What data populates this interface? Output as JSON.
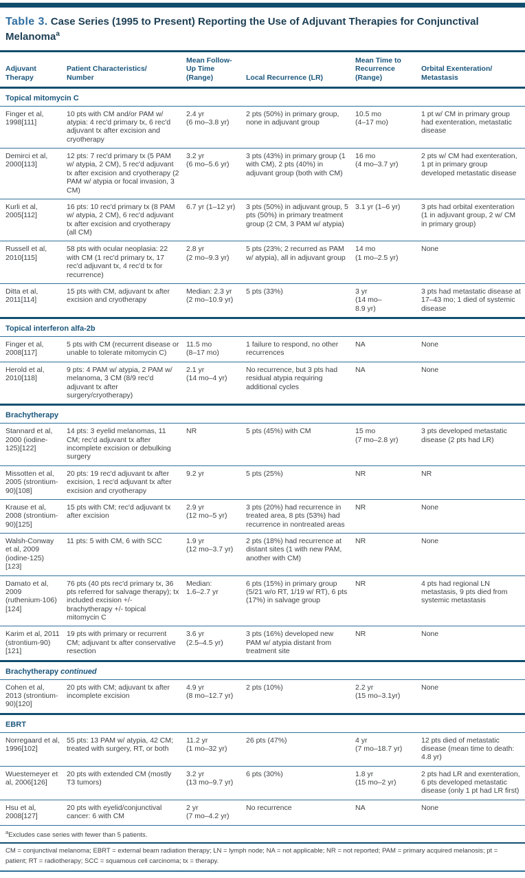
{
  "title": {
    "label": "Table 3.",
    "text": " Case Series (1995 to Present) Reporting the Use of Adjuvant Therapies for Conjunctival Melanoma",
    "superscript": "a"
  },
  "columns": [
    "Adjuvant\nTherapy",
    "Patient Characteristics/\nNumber",
    "Mean Follow-\nUp Time\n(Range)",
    "Local Recurrence (LR)",
    "Mean Time to\nRecurrence\n(Range)",
    "Orbital Exenteration/\nMetastasis"
  ],
  "sections": [
    {
      "title": "Topical mitomycin C",
      "suffix": "",
      "rows": [
        [
          "Finger et al, 1998[111]",
          "10 pts with CM and/or PAM w/ atypia: 4 rec'd primary tx, 6 rec'd adjuvant tx after excision and cryotherapy",
          "2.4 yr\n(6 mo–3.8 yr)",
          "2 pts (50%) in primary group, none in adjuvant group",
          "10.5 mo\n(4–17 mo)",
          "1 pt w/ CM in primary group had exenteration, metastatic disease"
        ],
        [
          "Demirci et al, 2000[113]",
          "12 pts: 7 rec'd primary tx (5 PAM w/ atypia, 2 CM), 5 rec'd adjuvant tx after excision and cryotherapy (2 PAM w/ atypia or focal invasion, 3 CM)",
          "3.2 yr\n(6 mo–5.6 yr)",
          "3 pts (43%) in primary group (1 with CM), 2 pts (40%) in adjuvant group (both with CM)",
          "16 mo\n(4 mo–3.7 yr)",
          "2 pts w/ CM had exenteration, 1 pt in primary group developed metastatic disease"
        ],
        [
          "Kurli et al, 2005[112]",
          "16 pts: 10 rec'd primary tx (8 PAM w/ atypia, 2 CM), 6 rec'd adjuvant tx after excision and cryotherapy (all CM)",
          "6.7 yr (1–12 yr)",
          "3 pts (50%) in adjuvant group, 5 pts (50%) in primary treatment group (2 CM, 3 PAM w/ atypia)",
          "3.1 yr (1–6 yr)",
          "3 pts had orbital exenteration (1 in adjuvant group, 2 w/ CM in primary group)"
        ],
        [
          "Russell et al, 2010[115]",
          "58 pts with ocular neoplasia: 22 with CM (1 rec'd primary tx, 17 rec'd adjuvant tx, 4 rec'd tx for recurrence)",
          "2.8 yr\n(2 mo–9.3 yr)",
          "5 pts (23%; 2 recurred as PAM w/ atypia), all in adjuvant group",
          "14 mo\n(1 mo–2.5 yr)",
          "None"
        ],
        [
          "Ditta et al, 2011[114]",
          "15 pts with CM, adjuvant tx after excision and cryotherapy",
          "Median: 2.3 yr\n(2 mo–10.9 yr)",
          "5 pts (33%)",
          "3 yr\n(14 mo–\n8.9 yr)",
          "3 pts had metastatic disease at 17–43 mo; 1 died of systemic disease"
        ]
      ]
    },
    {
      "title": "Topical interferon alfa-2b",
      "suffix": "",
      "rows": [
        [
          "Finger et al, 2008[117]",
          "5 pts with CM (recurrent disease or unable to tolerate mitomycin C)",
          "11.5 mo\n(8–17 mo)",
          "1 failure to respond, no other recurrences",
          "NA",
          "None"
        ],
        [
          "Herold et al, 2010[118]",
          "9 pts: 4 PAM w/ atypia, 2 PAM w/ melanoma, 3 CM (8/9 rec'd adjuvant tx after surgery/cryotherapy)",
          "2.1 yr\n(14 mo–4 yr)",
          "No recurrence, but 3 pts had residual atypia requiring additional cycles",
          "NA",
          "None"
        ]
      ]
    },
    {
      "title": "Brachytherapy",
      "suffix": "",
      "rows": [
        [
          "Stannard et al, 2000 (iodine-125)[122]",
          "14 pts: 3 eyelid melanomas, 11 CM; rec'd adjuvant tx after incomplete excision or debulking surgery",
          "NR",
          "5 pts (45%) with CM",
          "15 mo\n(7 mo–2.8 yr)",
          "3 pts developed metastatic disease (2 pts had LR)"
        ],
        [
          "Missotten et al, 2005 (strontium-90)[108]",
          "20 pts: 19 rec'd adjuvant tx after excision, 1 rec'd adjuvant tx after excision and cryotherapy",
          "9.2 yr",
          "5 pts (25%)",
          "NR",
          "NR"
        ],
        [
          "Krause et al, 2008 (strontium-90)[125]",
          "15 pts with CM; rec'd adjuvant tx after excision",
          "2.9 yr\n(12 mo–5 yr)",
          "3 pts (20%) had recurrence in treated area, 8 pts (53%) had recurrence in nontreated areas",
          "NR",
          "None"
        ],
        [
          "Walsh-Conway et al, 2009 (iodine-125)[123]",
          "11 pts: 5 with CM, 6 with SCC",
          "1.9 yr\n(12 mo–3.7 yr)",
          "2 pts (18%) had recurrence at distant sites (1 with new PAM, another with CM)",
          "NR",
          "None"
        ],
        [
          "Damato et al, 2009 (ruthenium-106)[124]",
          "76 pts (40 pts rec'd primary tx, 36 pts referred for salvage therapy); tx included excision +/- brachytherapy +/- topical mitomycin C",
          "Median:\n1.6–2.7 yr",
          "6 pts (15%) in primary group (5/21 w/o RT, 1/19 w/ RT), 6 pts (17%) in salvage group",
          "NR",
          "4 pts had regional LN metastasis, 9 pts died from systemic metastasis"
        ],
        [
          "Karim et al, 2011 (strontium-90)[121]",
          "19 pts with primary or recurrent CM; adjuvant tx after conservative resection",
          "3.6 yr\n(2.5–4.5 yr)",
          "3 pts (16%) developed new PAM w/ atypia distant from treatment site",
          "NR",
          "None"
        ]
      ]
    },
    {
      "title": "Brachytherapy",
      "suffix": "continued",
      "rows": [
        [
          "Cohen et al, 2013 (strontium-90)[120]",
          "20 pts with CM; adjuvant tx after incomplete excision",
          "4.9 yr\n(8 mo–12.7 yr)",
          "2 pts (10%)",
          "2.2 yr\n(15 mo–3.1yr)",
          "None"
        ]
      ]
    },
    {
      "title": "EBRT",
      "suffix": "",
      "rows": [
        [
          "Norregaard et al, 1996[102]",
          "55 pts: 13 PAM w/ atypia, 42 CM; treated with surgery, RT, or both",
          "11.2 yr\n(1 mo–32 yr)",
          "26 pts (47%)",
          "4 yr\n(7 mo–18.7 yr)",
          "12 pts died of metastatic disease (mean time to death: 4.8 yr)"
        ],
        [
          "Wuestemeyer et al, 2006[126]",
          "20 pts with extended CM (mostly T3 tumors)",
          "3.2 yr\n(13 mo–9.7 yr)",
          "6 pts (30%)",
          "1.8 yr\n(15 mo–2 yr)",
          "2 pts had LR and exenteration, 6 pts developed metastatic disease (only 1 pt had LR first)"
        ],
        [
          "Hsu et al, 2008[127]",
          "20 pts with eyelid/conjunctival cancer: 6 with CM",
          "2 yr\n(7 mo–4.2 yr)",
          "No recurrence",
          "NA",
          "None"
        ]
      ]
    }
  ],
  "footnotes": {
    "a_marker": "a",
    "a_text": "Excludes case series with fewer than 5 patients.",
    "abbreviations": "CM = conjunctival melanoma; EBRT = external beam radiation therapy; LN = lymph node; NA = not applicable; NR = not reported; PAM = primary acquired melanosis; pt = patient; RT = radiotherapy; SCC = squamous cell carcinoma; tx = therapy."
  },
  "colors": {
    "accent_bar": "#114e6e",
    "rule": "#2e6f99",
    "heading_text": "#1a567c",
    "title_label": "#2f6fa2",
    "title_text": "#1d3f55",
    "body_text": "#3d4043"
  }
}
